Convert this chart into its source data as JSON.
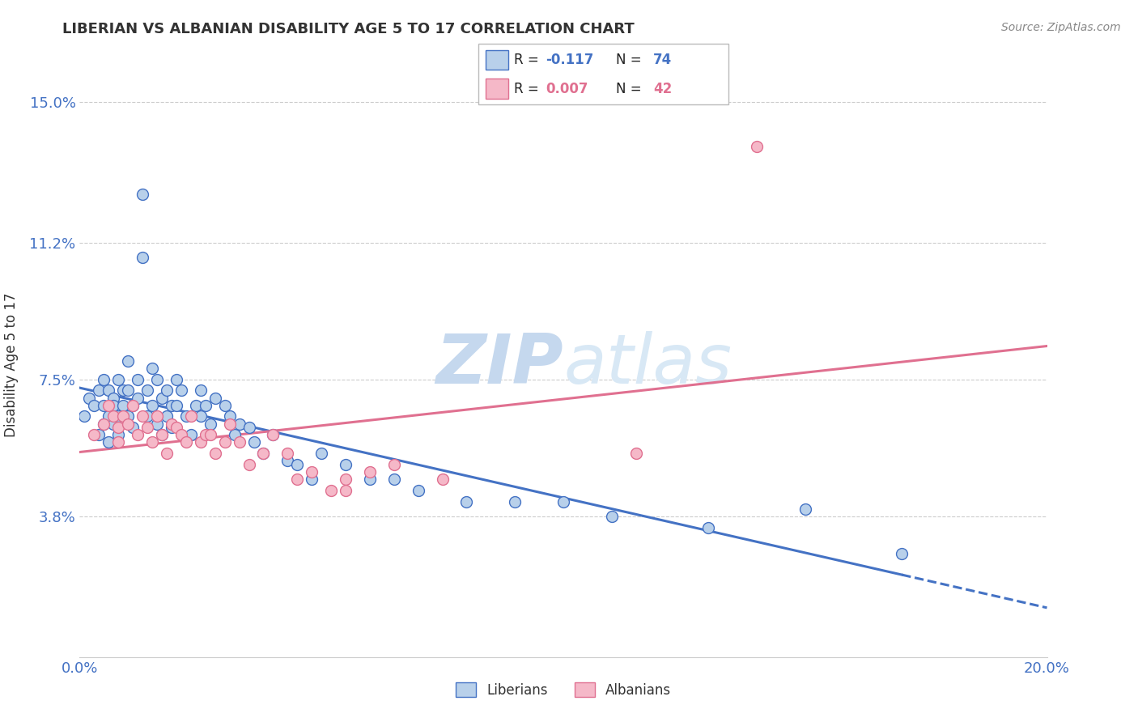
{
  "title": "LIBERIAN VS ALBANIAN DISABILITY AGE 5 TO 17 CORRELATION CHART",
  "source_text": "Source: ZipAtlas.com",
  "ylabel": "Disability Age 5 to 17",
  "xlim": [
    0.0,
    0.2
  ],
  "ylim": [
    0.0,
    0.158
  ],
  "xticks": [
    0.0,
    0.05,
    0.1,
    0.15,
    0.2
  ],
  "xtick_labels": [
    "0.0%",
    "",
    "",
    "",
    "20.0%"
  ],
  "ytick_values": [
    0.038,
    0.075,
    0.112,
    0.15
  ],
  "ytick_labels": [
    "3.8%",
    "7.5%",
    "11.2%",
    "15.0%"
  ],
  "grid_color": "#cccccc",
  "background_color": "#ffffff",
  "liberian_color": "#b8d0ea",
  "albanian_color": "#f5b8c8",
  "liberian_line_color": "#4472c4",
  "albanian_line_color": "#e07090",
  "R_liberian": -0.117,
  "N_liberian": 74,
  "R_albanian": 0.007,
  "N_albanian": 42,
  "liberian_x": [
    0.001,
    0.002,
    0.003,
    0.004,
    0.004,
    0.005,
    0.005,
    0.005,
    0.006,
    0.006,
    0.006,
    0.007,
    0.007,
    0.007,
    0.008,
    0.008,
    0.008,
    0.009,
    0.009,
    0.01,
    0.01,
    0.01,
    0.011,
    0.011,
    0.012,
    0.012,
    0.013,
    0.013,
    0.014,
    0.014,
    0.015,
    0.015,
    0.016,
    0.016,
    0.017,
    0.017,
    0.018,
    0.018,
    0.019,
    0.019,
    0.02,
    0.02,
    0.021,
    0.022,
    0.023,
    0.024,
    0.025,
    0.025,
    0.026,
    0.027,
    0.028,
    0.03,
    0.031,
    0.032,
    0.033,
    0.035,
    0.036,
    0.038,
    0.04,
    0.043,
    0.045,
    0.048,
    0.05,
    0.055,
    0.06,
    0.065,
    0.07,
    0.08,
    0.09,
    0.1,
    0.11,
    0.13,
    0.15,
    0.17
  ],
  "liberian_y": [
    0.065,
    0.07,
    0.068,
    0.072,
    0.06,
    0.075,
    0.068,
    0.063,
    0.065,
    0.072,
    0.058,
    0.07,
    0.063,
    0.068,
    0.075,
    0.065,
    0.06,
    0.072,
    0.068,
    0.08,
    0.072,
    0.065,
    0.068,
    0.062,
    0.075,
    0.07,
    0.125,
    0.108,
    0.072,
    0.065,
    0.078,
    0.068,
    0.075,
    0.063,
    0.07,
    0.06,
    0.072,
    0.065,
    0.068,
    0.062,
    0.075,
    0.068,
    0.072,
    0.065,
    0.06,
    0.068,
    0.072,
    0.065,
    0.068,
    0.063,
    0.07,
    0.068,
    0.065,
    0.06,
    0.063,
    0.062,
    0.058,
    0.055,
    0.06,
    0.053,
    0.052,
    0.048,
    0.055,
    0.052,
    0.048,
    0.048,
    0.045,
    0.042,
    0.042,
    0.042,
    0.038,
    0.035,
    0.04,
    0.028
  ],
  "albanian_x": [
    0.003,
    0.005,
    0.006,
    0.007,
    0.008,
    0.008,
    0.009,
    0.01,
    0.011,
    0.012,
    0.013,
    0.014,
    0.015,
    0.016,
    0.017,
    0.018,
    0.019,
    0.02,
    0.021,
    0.022,
    0.023,
    0.025,
    0.026,
    0.027,
    0.028,
    0.03,
    0.031,
    0.033,
    0.035,
    0.038,
    0.04,
    0.043,
    0.048,
    0.052,
    0.055,
    0.06,
    0.065,
    0.045,
    0.055,
    0.075,
    0.115,
    0.14
  ],
  "albanian_y": [
    0.06,
    0.063,
    0.068,
    0.065,
    0.062,
    0.058,
    0.065,
    0.063,
    0.068,
    0.06,
    0.065,
    0.062,
    0.058,
    0.065,
    0.06,
    0.055,
    0.063,
    0.062,
    0.06,
    0.058,
    0.065,
    0.058,
    0.06,
    0.06,
    0.055,
    0.058,
    0.063,
    0.058,
    0.052,
    0.055,
    0.06,
    0.055,
    0.05,
    0.045,
    0.048,
    0.05,
    0.052,
    0.048,
    0.045,
    0.048,
    0.055,
    0.138
  ]
}
